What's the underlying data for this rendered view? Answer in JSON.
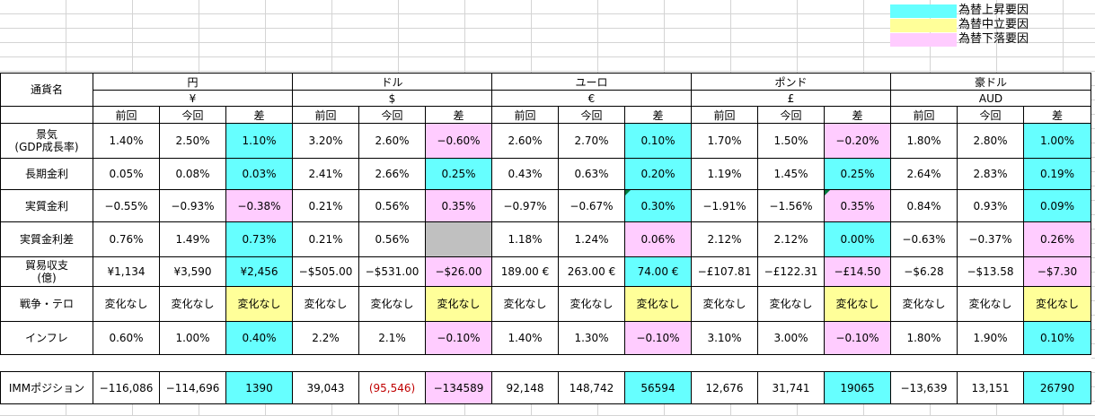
{
  "legend": [
    {
      "label": "為替上昇要因",
      "color": "#66ffff"
    },
    {
      "label": "為替中立要因",
      "color": "#ffff99"
    },
    {
      "label": "為替下落要因",
      "color": "#ffccff"
    }
  ],
  "header": {
    "corner": "通貨名",
    "currencies": [
      {
        "name": "円",
        "symbol": "¥"
      },
      {
        "name": "ドル",
        "symbol": "$"
      },
      {
        "name": "ユーロ",
        "symbol": "€"
      },
      {
        "name": "ポンド",
        "symbol": "£"
      },
      {
        "name": "豪ドル",
        "symbol": "AUD"
      }
    ],
    "sub": [
      "前回",
      "今回",
      "差"
    ]
  },
  "rows": [
    {
      "label": "景気\n(GDP成長率)",
      "cells": [
        [
          "1.40%",
          "2.50%",
          "1.10%"
        ],
        [
          "3.20%",
          "2.60%",
          "−0.60%"
        ],
        [
          "2.60%",
          "2.70%",
          "0.10%"
        ],
        [
          "1.70%",
          "1.50%",
          "−0.20%"
        ],
        [
          "1.80%",
          "2.80%",
          "1.00%"
        ]
      ]
    },
    {
      "label": "長期金利",
      "cells": [
        [
          "0.05%",
          "0.08%",
          "0.03%"
        ],
        [
          "2.41%",
          "2.66%",
          "0.25%"
        ],
        [
          "0.43%",
          "0.63%",
          "0.20%"
        ],
        [
          "1.19%",
          "1.45%",
          "0.25%"
        ],
        [
          "2.64%",
          "2.83%",
          "0.19%"
        ]
      ]
    },
    {
      "label": "実質金利",
      "cells": [
        [
          "−0.55%",
          "−0.93%",
          "−0.38%"
        ],
        [
          "0.21%",
          "0.56%",
          "0.35%"
        ],
        [
          "−0.97%",
          "−0.67%",
          "0.30%"
        ],
        [
          "−1.91%",
          "−1.56%",
          "0.35%"
        ],
        [
          "0.84%",
          "0.93%",
          "0.09%"
        ]
      ]
    },
    {
      "label": "実質金利差",
      "cells": [
        [
          "0.76%",
          "1.49%",
          "0.73%"
        ],
        [
          "0.21%",
          "0.56%",
          ""
        ],
        [
          "1.18%",
          "1.24%",
          "0.06%"
        ],
        [
          "2.12%",
          "2.12%",
          "0.00%"
        ],
        [
          "−0.63%",
          "−0.37%",
          "0.26%"
        ]
      ]
    },
    {
      "label": "貿易収支\n(億)",
      "cells": [
        [
          "¥1,134",
          "¥3,590",
          "¥2,456"
        ],
        [
          "−$505.00",
          "−$531.00",
          "−$26.00"
        ],
        [
          "189.00 €",
          "263.00 €",
          "74.00 €"
        ],
        [
          "−£107.81",
          "−£122.31",
          "−£14.50"
        ],
        [
          "−$6.28",
          "−$13.58",
          "−$7.30"
        ]
      ]
    },
    {
      "label": "戦争・テロ",
      "cells": [
        [
          "変化なし",
          "変化なし",
          "変化なし"
        ],
        [
          "変化なし",
          "変化なし",
          "変化なし"
        ],
        [
          "変化なし",
          "変化なし",
          "変化なし"
        ],
        [
          "変化なし",
          "変化なし",
          "変化なし"
        ],
        [
          "変化なし",
          "変化なし",
          "変化なし"
        ]
      ]
    },
    {
      "label": "インフレ",
      "cells": [
        [
          "0.60%",
          "1.00%",
          "0.40%"
        ],
        [
          "2.2%",
          "2.1%",
          "−0.10%"
        ],
        [
          "1.40%",
          "1.30%",
          "−0.10%"
        ],
        [
          "3.10%",
          "3.00%",
          "−0.10%"
        ],
        [
          "1.80%",
          "1.90%",
          "0.10%"
        ]
      ]
    }
  ],
  "imm": {
    "label": "IMMポジション",
    "cells": [
      [
        "−116,086",
        "−114,696",
        "1390"
      ],
      [
        "39,043",
        "(95,546)",
        "−134589"
      ],
      [
        "92,148",
        "148,742",
        "56594"
      ],
      [
        "12,676",
        "31,741",
        "19065"
      ],
      [
        "−13,639",
        "13,151",
        "26790"
      ]
    ]
  }
}
